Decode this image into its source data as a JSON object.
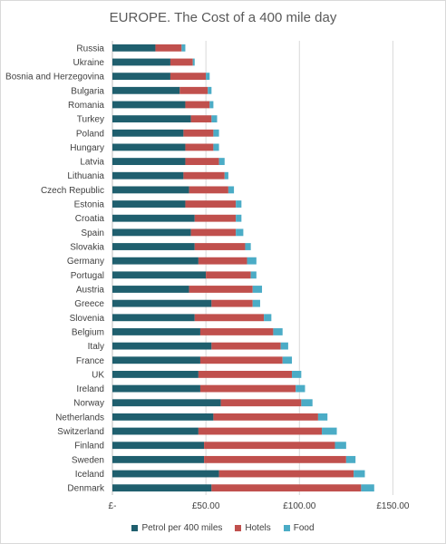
{
  "chart_data": {
    "type": "bar",
    "orientation": "horizontal",
    "stacked": true,
    "title": "EUROPE. The Cost of a 400 mile day",
    "categories": [
      "Russia",
      "Ukraine",
      "Bosnia and Herzegovina",
      "Bulgaria",
      "Romania",
      "Turkey",
      "Poland",
      "Hungary",
      "Latvia",
      "Lithuania",
      "Czech Republic",
      "Estonia",
      "Croatia",
      "Spain",
      "Slovakia",
      "Germany",
      "Portugal",
      "Austria",
      "Greece",
      "Slovenia",
      "Belgium",
      "Italy",
      "France",
      "UK",
      "Ireland",
      "Norway",
      "Netherlands",
      "Switzerland",
      "Finland",
      "Sweden",
      "Iceland",
      "Denmark"
    ],
    "series": [
      {
        "name": "Petrol per 400 miles",
        "color": "#1f5f6e",
        "values": [
          23,
          31,
          31,
          36,
          39,
          42,
          38,
          39,
          39,
          38,
          41,
          39,
          44,
          42,
          44,
          46,
          50,
          41,
          53,
          44,
          47,
          53,
          47,
          46,
          47,
          58,
          54,
          46,
          49,
          49,
          57,
          53
        ]
      },
      {
        "name": "Hotels",
        "color": "#c0504d",
        "values": [
          14,
          12,
          19,
          15,
          13,
          11,
          16,
          15,
          18,
          22,
          21,
          27,
          22,
          24,
          27,
          26,
          24,
          34,
          22,
          37,
          39,
          37,
          44,
          50,
          51,
          43,
          56,
          66,
          70,
          76,
          72,
          80
        ]
      },
      {
        "name": "Food",
        "color": "#4bacc6",
        "values": [
          2,
          1,
          2,
          2,
          2,
          3,
          3,
          3,
          3,
          2,
          3,
          3,
          3,
          4,
          3,
          5,
          3,
          5,
          4,
          4,
          5,
          4,
          5,
          5,
          5,
          6,
          5,
          8,
          6,
          5,
          6,
          7
        ]
      }
    ],
    "xaxis": {
      "ticks": [
        0,
        50,
        100,
        150
      ],
      "tick_labels": [
        "£-",
        "£50.00",
        "£100.00",
        "£150.00"
      ],
      "min": 0,
      "max": 175
    },
    "grid": true,
    "legend_position": "bottom"
  }
}
